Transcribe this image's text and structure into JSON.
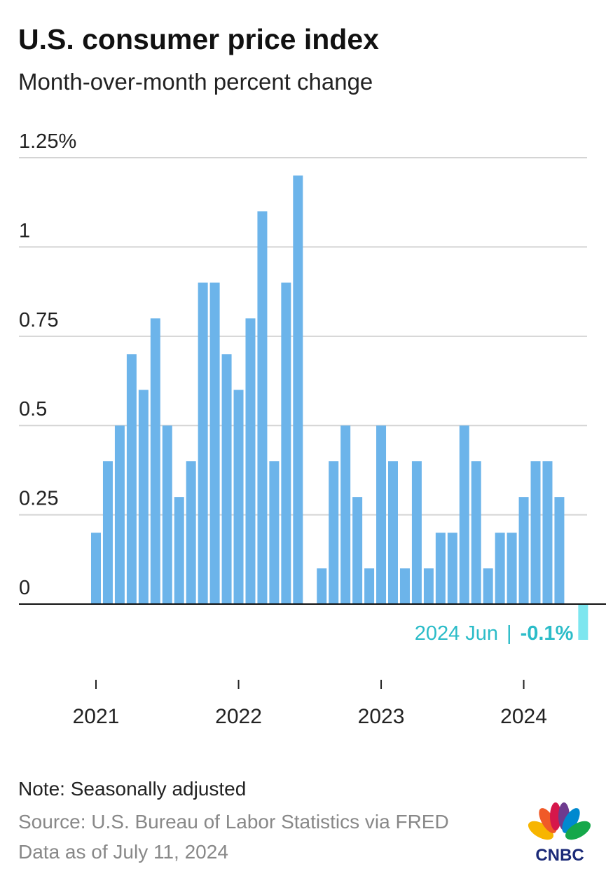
{
  "chart_data": {
    "type": "bar",
    "title": "U.S. consumer price index",
    "subtitle": "Month-over-month percent change",
    "categories": [
      "2021",
      null,
      null,
      null,
      null,
      null,
      null,
      null,
      null,
      null,
      null,
      null,
      "2022",
      null,
      null,
      null,
      null,
      null,
      null,
      null,
      null,
      null,
      null,
      null,
      "2023",
      null,
      null,
      null,
      null,
      null,
      null,
      null,
      null,
      null,
      null,
      null,
      "2024",
      null,
      null,
      null,
      null,
      null
    ],
    "values": [
      0.2,
      0.4,
      0.5,
      0.7,
      0.6,
      0.8,
      0.5,
      0.3,
      0.4,
      0.9,
      0.9,
      0.7,
      0.6,
      0.8,
      1.1,
      0.4,
      0.9,
      1.2,
      0,
      0.1,
      0.4,
      0.5,
      0.3,
      0.1,
      0.5,
      0.4,
      0.1,
      0.4,
      0.1,
      0.2,
      0.2,
      0.5,
      0.4,
      0.1,
      0.2,
      0.2,
      0.3,
      0.4,
      0.4,
      0.3,
      0,
      -0.1
    ],
    "value_labels": [
      null,
      null,
      null,
      null,
      null,
      null,
      null,
      null,
      null,
      null,
      null,
      null,
      null,
      null,
      null,
      null,
      null,
      null,
      null,
      null,
      null,
      null,
      null,
      null,
      null,
      null,
      null,
      null,
      null,
      null,
      null,
      null,
      null,
      null,
      null,
      null,
      null,
      null,
      null,
      null,
      null,
      "-0.1%"
    ],
    "color": "#6cb4ea",
    "highlight_color": "#7de6ef",
    "annotation": "2024 Jun",
    "ylim": [
      -0.1,
      1.25
    ],
    "yticks": [
      0,
      0.25,
      0.5,
      0.75,
      1,
      {
        "value": 1.25,
        "label": "1.25%"
      }
    ],
    "grid": true,
    "note": "Note: Seasonally adjusted",
    "source": "Source: U.S. Bureau of Labor Statistics via FRED",
    "date_note": "Data as of July 11, 2024",
    "logo": "CNBC"
  }
}
